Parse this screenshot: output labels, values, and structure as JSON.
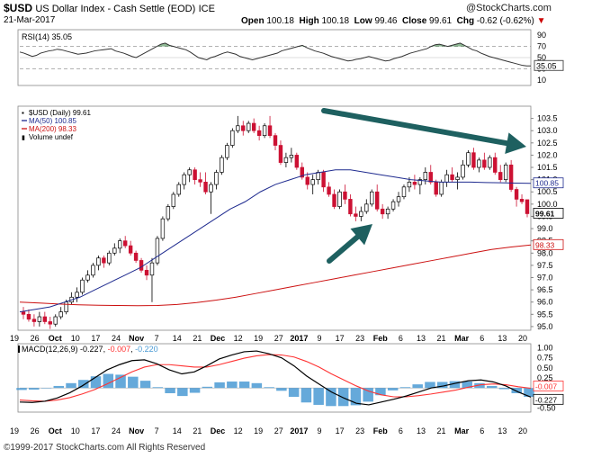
{
  "header": {
    "symbol": "$USD",
    "name": "US Dollar Index - Cash Settle (EOD)",
    "exchange": "ICE",
    "date": "21-Mar-2017",
    "open_label": "Open",
    "open": "100.18",
    "high_label": "High",
    "high": "100.18",
    "low_label": "Low",
    "low": "99.46",
    "close_label": "Close",
    "close": "99.61",
    "chg_label": "Chg",
    "chg": "-0.62 (-0.62%)",
    "brand": "@StockCharts.com"
  },
  "footer": {
    "copyright": "©1999-2017 StockCharts.com All Rights Reserved"
  },
  "colors": {
    "up": "#ffffff",
    "down": "#cc1133",
    "ma50": "#1f2b8f",
    "ma200": "#cc1111",
    "arrow": "#1e6060",
    "macd_line": "#000000",
    "signal": "#ff3333",
    "hist": "#4a9ad4",
    "rsi": "#333333",
    "rsi_fill": "#2f7d3a"
  },
  "chart_data": [
    {
      "type": "line",
      "panel": "rsi",
      "label": "RSI(14) 35.05",
      "value_label": "35.05",
      "y_ticks": [
        "90",
        "70",
        "50",
        "30",
        "10"
      ],
      "ylim": [
        0,
        100
      ],
      "overbought": 70,
      "oversold": 30,
      "values": [
        60,
        58,
        55,
        52,
        54,
        58,
        60,
        62,
        63,
        65,
        64,
        62,
        60,
        58,
        56,
        57,
        58,
        60,
        62,
        63,
        64,
        65,
        66,
        62,
        60,
        58,
        55,
        52,
        50,
        54,
        58,
        62,
        66,
        70,
        74,
        76,
        72,
        70,
        68,
        66,
        64,
        60,
        55,
        50,
        48,
        46,
        50,
        52,
        55,
        58,
        60,
        58,
        56,
        52,
        50,
        48,
        46,
        48,
        50,
        52,
        54,
        56,
        58,
        62,
        64,
        66,
        68,
        70,
        72,
        68,
        65,
        62,
        60,
        58,
        55,
        52,
        50,
        48,
        46,
        44,
        45,
        47,
        48,
        50,
        52,
        50,
        48,
        46,
        44,
        45,
        48,
        50,
        52,
        55,
        58,
        60,
        62,
        64,
        66,
        70,
        73,
        74,
        72,
        70,
        72,
        74,
        76,
        72,
        68,
        64,
        62,
        58,
        55,
        52,
        50,
        48,
        46,
        44,
        42,
        40,
        38,
        36,
        35,
        35
      ]
    },
    {
      "type": "candlestick",
      "panel": "price",
      "legend": [
        "$USD (Daily) 99.61",
        "MA(50) 100.85",
        "MA(200) 98.33",
        "Volume undef"
      ],
      "price_labels": [
        "100.85",
        "99.61",
        "98.33"
      ],
      "y_ticks": [
        "103.5",
        "103.0",
        "102.5",
        "102.0",
        "101.5",
        "101.0",
        "100.5",
        "100.0",
        "99.5",
        "99.0",
        "98.5",
        "98.0",
        "97.5",
        "97.0",
        "96.5",
        "96.0",
        "95.5",
        "95.0"
      ],
      "ylim": [
        94.85,
        104.0
      ],
      "x_ticks": [
        "19",
        "26",
        "Oct",
        "10",
        "17",
        "24",
        "Nov",
        "7",
        "14",
        "21",
        "Dec",
        "12",
        "19",
        "27",
        "2017",
        "9",
        "17",
        "23",
        "Feb",
        "6",
        "13",
        "21",
        "Mar",
        "6",
        "13",
        "20"
      ],
      "ohlc": [
        [
          95.6,
          95.8,
          95.3,
          95.5
        ],
        [
          95.5,
          95.7,
          95.2,
          95.3
        ],
        [
          95.3,
          95.5,
          95.0,
          95.2
        ],
        [
          95.2,
          95.6,
          95.0,
          95.4
        ],
        [
          95.4,
          95.6,
          95.1,
          95.2
        ],
        [
          95.2,
          95.4,
          94.9,
          95.1
        ],
        [
          95.1,
          95.5,
          95.0,
          95.4
        ],
        [
          95.4,
          95.8,
          95.3,
          95.6
        ],
        [
          95.6,
          96.1,
          95.5,
          96.0
        ],
        [
          96.0,
          96.4,
          95.9,
          96.2
        ],
        [
          96.2,
          96.6,
          96.0,
          96.4
        ],
        [
          96.4,
          97.0,
          96.3,
          96.9
        ],
        [
          96.9,
          97.3,
          96.8,
          97.1
        ],
        [
          97.1,
          97.6,
          97.0,
          97.5
        ],
        [
          97.5,
          97.9,
          97.3,
          97.8
        ],
        [
          97.8,
          97.9,
          97.4,
          97.6
        ],
        [
          97.6,
          98.1,
          97.5,
          98.0
        ],
        [
          98.0,
          98.4,
          97.9,
          98.2
        ],
        [
          98.2,
          98.6,
          98.0,
          98.5
        ],
        [
          98.5,
          98.7,
          98.2,
          98.3
        ],
        [
          98.3,
          98.5,
          97.9,
          98.0
        ],
        [
          98.0,
          98.1,
          97.6,
          97.7
        ],
        [
          97.7,
          97.8,
          97.2,
          97.3
        ],
        [
          97.3,
          97.5,
          96.9,
          97.1
        ],
        [
          97.1,
          97.8,
          96.0,
          97.6
        ],
        [
          97.6,
          98.7,
          97.5,
          98.6
        ],
        [
          98.6,
          99.5,
          98.5,
          99.4
        ],
        [
          99.4,
          100.0,
          99.3,
          99.9
        ],
        [
          99.9,
          100.5,
          99.8,
          100.4
        ],
        [
          100.4,
          100.9,
          100.3,
          100.8
        ],
        [
          100.8,
          101.3,
          100.6,
          101.2
        ],
        [
          101.2,
          101.5,
          100.9,
          101.4
        ],
        [
          101.4,
          101.5,
          100.8,
          101.0
        ],
        [
          101.0,
          101.3,
          100.7,
          100.9
        ],
        [
          100.9,
          101.3,
          100.4,
          100.5
        ],
        [
          100.5,
          100.9,
          99.6,
          100.8
        ],
        [
          100.8,
          101.4,
          100.6,
          101.3
        ],
        [
          101.3,
          102.0,
          101.2,
          101.9
        ],
        [
          101.9,
          102.5,
          101.8,
          102.4
        ],
        [
          102.4,
          103.1,
          102.3,
          103.0
        ],
        [
          103.0,
          103.6,
          102.9,
          103.2
        ],
        [
          103.2,
          103.4,
          102.8,
          103.0
        ],
        [
          103.0,
          103.4,
          102.9,
          103.3
        ],
        [
          103.3,
          103.5,
          102.9,
          103.0
        ],
        [
          103.0,
          103.2,
          102.6,
          102.8
        ],
        [
          102.8,
          103.3,
          102.7,
          103.2
        ],
        [
          103.2,
          103.6,
          102.7,
          102.8
        ],
        [
          102.8,
          102.9,
          102.2,
          102.4
        ],
        [
          102.4,
          102.6,
          101.6,
          101.7
        ],
        [
          101.7,
          102.1,
          101.5,
          101.9
        ],
        [
          101.9,
          102.3,
          101.7,
          102.0
        ],
        [
          102.0,
          102.1,
          101.4,
          101.5
        ],
        [
          101.5,
          101.7,
          101.0,
          101.1
        ],
        [
          101.1,
          101.3,
          100.6,
          100.8
        ],
        [
          100.8,
          101.2,
          100.4,
          101.0
        ],
        [
          101.0,
          101.4,
          100.8,
          101.3
        ],
        [
          101.3,
          101.4,
          100.5,
          100.7
        ],
        [
          100.7,
          100.9,
          100.3,
          100.4
        ],
        [
          100.4,
          100.6,
          99.8,
          99.9
        ],
        [
          99.9,
          100.6,
          99.8,
          100.5
        ],
        [
          100.5,
          100.8,
          100.0,
          100.2
        ],
        [
          100.2,
          100.4,
          99.5,
          99.6
        ],
        [
          99.6,
          99.9,
          99.3,
          99.5
        ],
        [
          99.5,
          99.9,
          99.3,
          99.7
        ],
        [
          99.7,
          100.2,
          99.6,
          100.0
        ],
        [
          100.0,
          100.6,
          99.9,
          100.5
        ],
        [
          100.5,
          100.8,
          99.7,
          99.8
        ],
        [
          99.8,
          100.0,
          99.4,
          99.6
        ],
        [
          99.6,
          99.9,
          99.4,
          99.8
        ],
        [
          99.8,
          100.2,
          99.7,
          100.1
        ],
        [
          100.1,
          100.5,
          99.9,
          100.3
        ],
        [
          100.3,
          100.8,
          100.2,
          100.7
        ],
        [
          100.7,
          101.1,
          100.5,
          100.9
        ],
        [
          100.9,
          101.2,
          100.6,
          100.8
        ],
        [
          100.8,
          101.1,
          100.4,
          101.0
        ],
        [
          101.0,
          101.5,
          100.8,
          101.3
        ],
        [
          101.3,
          101.6,
          100.8,
          100.9
        ],
        [
          100.9,
          101.0,
          100.3,
          100.4
        ],
        [
          100.4,
          101.0,
          100.3,
          100.9
        ],
        [
          100.9,
          101.4,
          100.7,
          101.2
        ],
        [
          101.2,
          101.5,
          100.9,
          101.0
        ],
        [
          101.0,
          101.3,
          100.6,
          101.1
        ],
        [
          101.1,
          101.8,
          101.0,
          101.6
        ],
        [
          101.6,
          102.2,
          101.5,
          102.1
        ],
        [
          102.1,
          102.3,
          101.4,
          101.5
        ],
        [
          101.5,
          101.9,
          101.3,
          101.8
        ],
        [
          101.8,
          102.1,
          101.4,
          101.5
        ],
        [
          101.5,
          102.0,
          101.4,
          101.9
        ],
        [
          101.9,
          102.1,
          101.2,
          101.3
        ],
        [
          101.3,
          101.6,
          100.9,
          101.0
        ],
        [
          101.0,
          101.7,
          100.9,
          101.6
        ],
        [
          101.6,
          101.8,
          100.5,
          100.6
        ],
        [
          100.6,
          100.7,
          99.9,
          100.2
        ],
        [
          100.2,
          100.4,
          100.0,
          100.1
        ],
        [
          100.18,
          100.18,
          99.46,
          99.61
        ]
      ],
      "ma50": [
        95.6,
        95.7,
        95.8,
        96.0,
        96.2,
        96.5,
        96.8,
        97.1,
        97.4,
        97.8,
        98.2,
        98.6,
        99.0,
        99.4,
        99.8,
        100.1,
        100.5,
        100.8,
        101.0,
        101.2,
        101.3,
        101.4,
        101.4,
        101.3,
        101.2,
        101.1,
        101.0,
        100.95,
        100.9,
        100.9,
        100.9,
        100.88,
        100.87,
        100.86,
        100.85
      ],
      "ma200": [
        96.0,
        95.96,
        95.92,
        95.89,
        95.87,
        95.86,
        95.85,
        95.86,
        95.9,
        95.98,
        96.08,
        96.2,
        96.35,
        96.5,
        96.65,
        96.8,
        96.95,
        97.1,
        97.25,
        97.4,
        97.55,
        97.7,
        97.85,
        98.0,
        98.15,
        98.25,
        98.33
      ]
    },
    {
      "type": "line",
      "panel": "macd",
      "label_prefix": "MACD(12,26,9)",
      "macd_value": "-0.227",
      "signal_value": "-0.007",
      "hist_value": "-0.220",
      "price_labels": [
        "-0.007",
        "-0.227"
      ],
      "y_ticks": [
        "1.00",
        "0.75",
        "0.50",
        "0.25",
        "0.00",
        "-0.25",
        "-0.50"
      ],
      "ylim": [
        -0.6,
        1.1
      ],
      "x_ticks": [
        "19",
        "26",
        "Oct",
        "10",
        "17",
        "24",
        "Nov",
        "7",
        "14",
        "21",
        "Dec",
        "12",
        "19",
        "27",
        "2017",
        "9",
        "17",
        "23",
        "Feb",
        "6",
        "13",
        "21",
        "Mar",
        "6",
        "13",
        "20"
      ],
      "macd": [
        -0.35,
        -0.36,
        -0.33,
        -0.25,
        -0.12,
        0.05,
        0.25,
        0.45,
        0.58,
        0.68,
        0.7,
        0.6,
        0.45,
        0.35,
        0.4,
        0.55,
        0.72,
        0.82,
        0.9,
        0.92,
        0.85,
        0.75,
        0.55,
        0.3,
        0.1,
        -0.1,
        -0.25,
        -0.38,
        -0.42,
        -0.35,
        -0.28,
        -0.2,
        -0.1,
        0.0,
        0.05,
        0.12,
        0.18,
        0.2,
        0.15,
        0.05,
        -0.1,
        -0.227
      ],
      "signal": [
        -0.3,
        -0.32,
        -0.33,
        -0.3,
        -0.24,
        -0.15,
        -0.04,
        0.1,
        0.25,
        0.4,
        0.52,
        0.58,
        0.58,
        0.55,
        0.52,
        0.52,
        0.58,
        0.66,
        0.74,
        0.8,
        0.83,
        0.82,
        0.77,
        0.66,
        0.52,
        0.35,
        0.2,
        0.05,
        -0.08,
        -0.17,
        -0.22,
        -0.22,
        -0.19,
        -0.15,
        -0.1,
        -0.05,
        0.02,
        0.08,
        0.1,
        0.08,
        0.03,
        -0.007
      ],
      "histogram": [
        -0.05,
        -0.04,
        0.0,
        0.05,
        0.12,
        0.2,
        0.29,
        0.35,
        0.33,
        0.28,
        0.18,
        0.02,
        -0.13,
        -0.2,
        -0.12,
        0.03,
        0.14,
        0.16,
        0.16,
        0.12,
        0.02,
        -0.07,
        -0.22,
        -0.36,
        -0.42,
        -0.45,
        -0.45,
        -0.43,
        -0.34,
        -0.18,
        -0.06,
        0.02,
        0.09,
        0.15,
        0.15,
        0.17,
        0.16,
        0.12,
        0.05,
        -0.03,
        -0.13,
        -0.22
      ]
    }
  ]
}
